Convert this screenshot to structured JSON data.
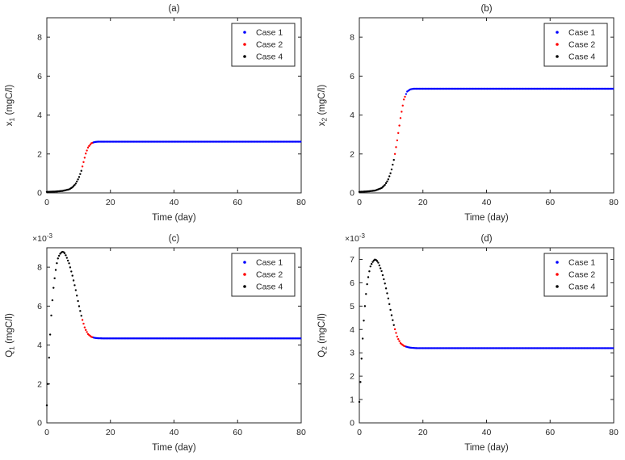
{
  "figure": {
    "background": "#ffffff",
    "axis_color": "#262626",
    "text_color": "#262626"
  },
  "chart_data": [
    {
      "id": "a",
      "type": "scatter",
      "title": "(a)",
      "xlabel": "Time (day)",
      "ylabel": {
        "prefix": "x",
        "sub": "1",
        "suffix": " (mgC/l)"
      },
      "exponent_label": null,
      "xlim": [
        0,
        80
      ],
      "ylim": [
        0,
        9
      ],
      "xticks": [
        0,
        20,
        40,
        60,
        80
      ],
      "yticks": [
        0,
        2,
        4,
        6,
        8
      ],
      "grid": false,
      "legend": {
        "position": "top-right",
        "entries": [
          {
            "label": "Case 1",
            "color": "#0000FF"
          },
          {
            "label": "Case 2",
            "color": "#FF0000"
          },
          {
            "label": "Case 4",
            "color": "#000000"
          }
        ]
      },
      "segments": [
        {
          "name": "Case 4",
          "color": "#000000",
          "t_range": [
            0,
            11
          ]
        },
        {
          "name": "Case 2",
          "color": "#FF0000",
          "t_range": [
            11,
            14.5
          ]
        },
        {
          "name": "Case 1",
          "color": "#0000FF",
          "t_range": [
            14.5,
            80
          ]
        }
      ],
      "marker_step": 0.35,
      "curve_keypoints": [
        [
          0,
          0.05
        ],
        [
          3,
          0.07
        ],
        [
          5,
          0.1
        ],
        [
          7,
          0.18
        ],
        [
          8,
          0.28
        ],
        [
          9,
          0.45
        ],
        [
          10,
          0.75
        ],
        [
          10.8,
          1.1
        ],
        [
          11.5,
          1.55
        ],
        [
          12.2,
          2.0
        ],
        [
          13,
          2.35
        ],
        [
          14,
          2.55
        ],
        [
          15,
          2.61
        ],
        [
          16,
          2.63
        ],
        [
          80,
          2.63
        ]
      ]
    },
    {
      "id": "b",
      "type": "scatter",
      "title": "(b)",
      "xlabel": "Time (day)",
      "ylabel": {
        "prefix": "x",
        "sub": "2",
        "suffix": " (mgC/l)"
      },
      "exponent_label": null,
      "xlim": [
        0,
        80
      ],
      "ylim": [
        0,
        9
      ],
      "xticks": [
        0,
        20,
        40,
        60,
        80
      ],
      "yticks": [
        0,
        2,
        4,
        6,
        8
      ],
      "grid": false,
      "legend": {
        "position": "top-right",
        "entries": [
          {
            "label": "Case 1",
            "color": "#0000FF"
          },
          {
            "label": "Case 2",
            "color": "#FF0000"
          },
          {
            "label": "Case 4",
            "color": "#000000"
          }
        ]
      },
      "segments": [
        {
          "name": "Case 4",
          "color": "#000000",
          "t_range": [
            0,
            11
          ]
        },
        {
          "name": "Case 2",
          "color": "#FF0000",
          "t_range": [
            11,
            14.5
          ]
        },
        {
          "name": "Case 1",
          "color": "#0000FF",
          "t_range": [
            14.5,
            80
          ]
        }
      ],
      "marker_step": 0.35,
      "curve_keypoints": [
        [
          0,
          0.05
        ],
        [
          3,
          0.08
        ],
        [
          5,
          0.12
        ],
        [
          7,
          0.25
        ],
        [
          8,
          0.4
        ],
        [
          9,
          0.65
        ],
        [
          10,
          1.1
        ],
        [
          11,
          1.8
        ],
        [
          12,
          2.8
        ],
        [
          13,
          3.9
        ],
        [
          14,
          4.8
        ],
        [
          15,
          5.2
        ],
        [
          16,
          5.32
        ],
        [
          17,
          5.35
        ],
        [
          80,
          5.35
        ]
      ]
    },
    {
      "id": "c",
      "type": "scatter",
      "title": "(c)",
      "xlabel": "Time (day)",
      "ylabel": {
        "prefix": "Q",
        "sub": "1",
        "suffix": " (mgC/l)"
      },
      "exponent_label": {
        "base": "×10",
        "power": "-3"
      },
      "xlim": [
        0,
        80
      ],
      "ylim": [
        0,
        9
      ],
      "xticks": [
        0,
        20,
        40,
        60,
        80
      ],
      "yticks": [
        0,
        2,
        4,
        6,
        8
      ],
      "grid": false,
      "legend": {
        "position": "top-right",
        "entries": [
          {
            "label": "Case 1",
            "color": "#0000FF"
          },
          {
            "label": "Case 2",
            "color": "#FF0000"
          },
          {
            "label": "Case 4",
            "color": "#000000"
          }
        ]
      },
      "segments": [
        {
          "name": "Case 4",
          "color": "#000000",
          "t_range": [
            0,
            11
          ]
        },
        {
          "name": "Case 2",
          "color": "#FF0000",
          "t_range": [
            11,
            14.5
          ]
        },
        {
          "name": "Case 1",
          "color": "#0000FF",
          "t_range": [
            14.5,
            80
          ]
        }
      ],
      "marker_step": 0.35,
      "curve_keypoints": [
        [
          0,
          0.9
        ],
        [
          0.3,
          1.8
        ],
        [
          0.6,
          3.0
        ],
        [
          1,
          4.4
        ],
        [
          1.5,
          5.8
        ],
        [
          2,
          6.8
        ],
        [
          2.5,
          7.5
        ],
        [
          3,
          8.1
        ],
        [
          3.5,
          8.45
        ],
        [
          4,
          8.65
        ],
        [
          4.5,
          8.75
        ],
        [
          5,
          8.8
        ],
        [
          5.5,
          8.75
        ],
        [
          6,
          8.6
        ],
        [
          7,
          8.2
        ],
        [
          8,
          7.6
        ],
        [
          9,
          6.9
        ],
        [
          10,
          6.1
        ],
        [
          11,
          5.4
        ],
        [
          12,
          4.85
        ],
        [
          13,
          4.55
        ],
        [
          14,
          4.42
        ],
        [
          15,
          4.37
        ],
        [
          16,
          4.35
        ],
        [
          18,
          4.34
        ],
        [
          80,
          4.34
        ]
      ]
    },
    {
      "id": "d",
      "type": "scatter",
      "title": "(d)",
      "xlabel": "Time (day)",
      "ylabel": {
        "prefix": "Q",
        "sub": "2",
        "suffix": " (mgC/l)"
      },
      "exponent_label": {
        "base": "×10",
        "power": "-3"
      },
      "xlim": [
        0,
        80
      ],
      "ylim": [
        0,
        7.5
      ],
      "xticks": [
        0,
        20,
        40,
        60,
        80
      ],
      "yticks": [
        0,
        1,
        2,
        3,
        4,
        5,
        6,
        7
      ],
      "grid": false,
      "legend": {
        "position": "top-right",
        "entries": [
          {
            "label": "Case 1",
            "color": "#0000FF"
          },
          {
            "label": "Case 2",
            "color": "#FF0000"
          },
          {
            "label": "Case 4",
            "color": "#000000"
          }
        ]
      },
      "segments": [
        {
          "name": "Case 4",
          "color": "#000000",
          "t_range": [
            0,
            11
          ]
        },
        {
          "name": "Case 2",
          "color": "#FF0000",
          "t_range": [
            11,
            14.5
          ]
        },
        {
          "name": "Case 1",
          "color": "#0000FF",
          "t_range": [
            14.5,
            80
          ]
        }
      ],
      "marker_step": 0.35,
      "curve_keypoints": [
        [
          0,
          0.9
        ],
        [
          0.3,
          1.6
        ],
        [
          0.6,
          2.5
        ],
        [
          1,
          3.5
        ],
        [
          1.5,
          4.6
        ],
        [
          2,
          5.4
        ],
        [
          2.5,
          6.0
        ],
        [
          3,
          6.4
        ],
        [
          3.5,
          6.7
        ],
        [
          4,
          6.85
        ],
        [
          4.5,
          6.95
        ],
        [
          5,
          7.0
        ],
        [
          5.5,
          6.95
        ],
        [
          6,
          6.85
        ],
        [
          7,
          6.5
        ],
        [
          8,
          6.0
        ],
        [
          9,
          5.4
        ],
        [
          10,
          4.7
        ],
        [
          11,
          4.1
        ],
        [
          12,
          3.65
        ],
        [
          13,
          3.4
        ],
        [
          14,
          3.3
        ],
        [
          15,
          3.25
        ],
        [
          16,
          3.22
        ],
        [
          18,
          3.2
        ],
        [
          80,
          3.2
        ]
      ]
    }
  ]
}
